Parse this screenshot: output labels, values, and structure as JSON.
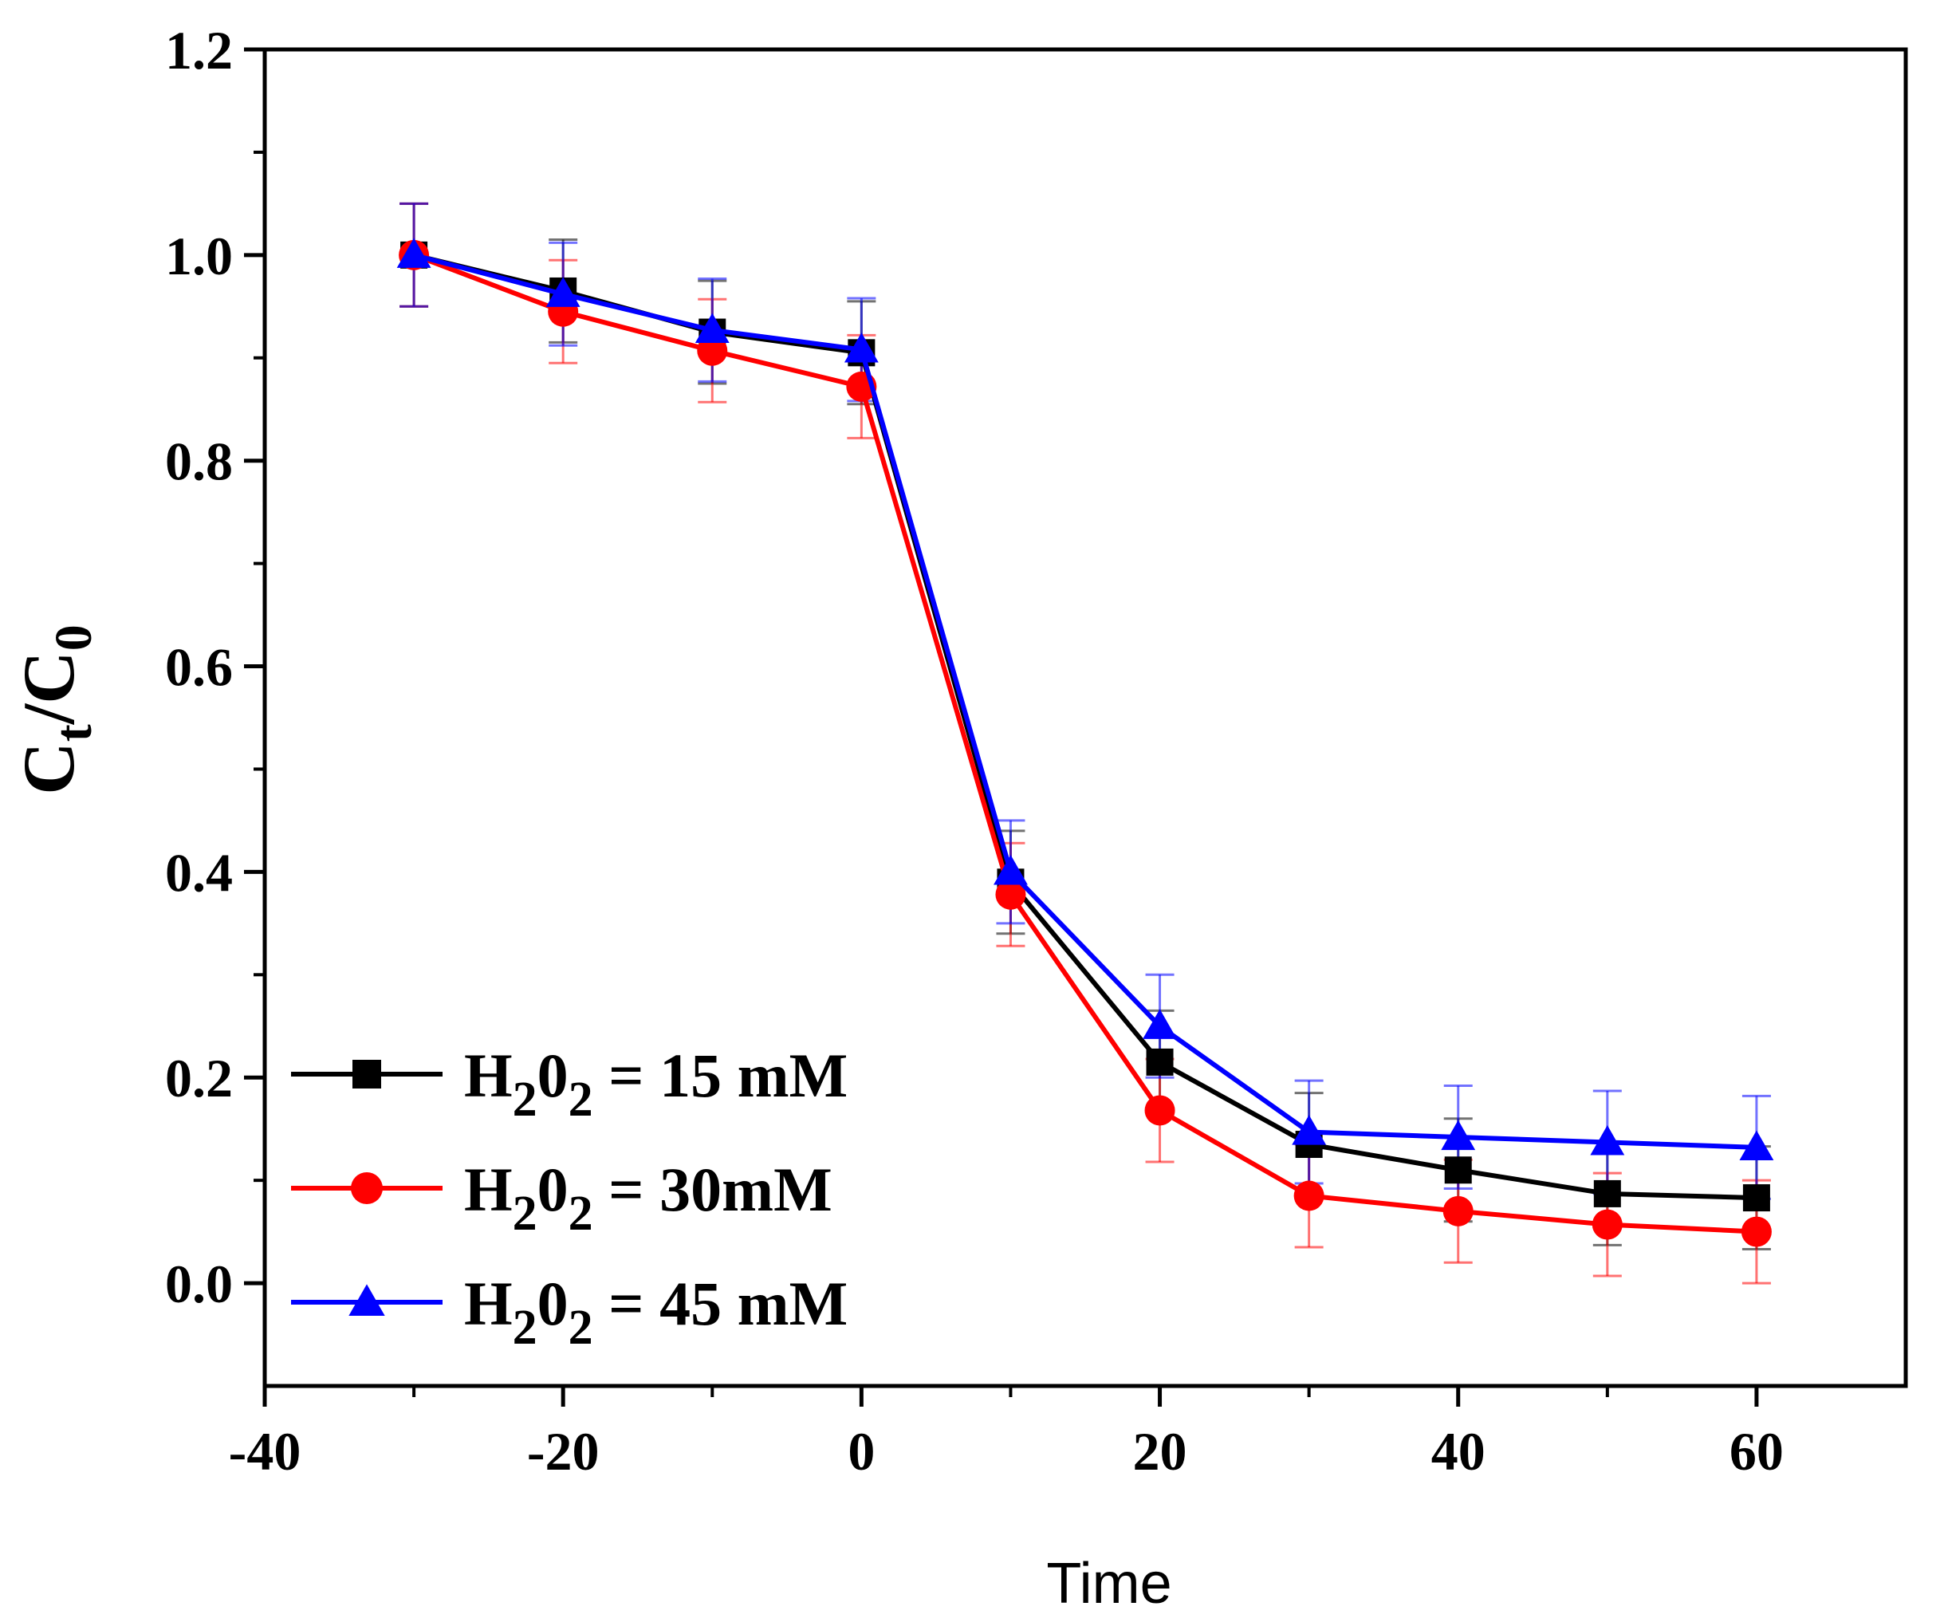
{
  "chart_data": {
    "type": "line",
    "xlabel": "Time",
    "ylabel": {
      "main": "C",
      "sub1": "t",
      "slash": "/C",
      "sub2": "0"
    },
    "xlim": [
      -40,
      70
    ],
    "ylim": [
      -0.1,
      1.2
    ],
    "xticks": [
      -40,
      -20,
      0,
      20,
      40,
      60
    ],
    "xtick_labels": [
      "-40",
      "-20",
      "0",
      "20",
      "40",
      "60"
    ],
    "yticks": [
      0.0,
      0.2,
      0.4,
      0.6,
      0.8,
      1.0,
      1.2
    ],
    "ytick_labels": [
      "0.0",
      "0.2",
      "0.4",
      "0.6",
      "0.8",
      "1.0",
      "1.2"
    ],
    "x": [
      -30,
      -20,
      -10,
      0,
      10,
      20,
      30,
      40,
      50,
      60
    ],
    "legend_position": "bottom-left",
    "series": [
      {
        "name": "H₂0₂ = 15 mM",
        "label_parts": [
          "H",
          "2",
          "0",
          "2",
          " = 15 mM"
        ],
        "color": "#000000",
        "marker": "square",
        "values": [
          1.0,
          0.965,
          0.925,
          0.905,
          0.39,
          0.215,
          0.135,
          0.11,
          0.087,
          0.083
        ],
        "errors": [
          0.05,
          0.05,
          0.05,
          0.05,
          0.05,
          0.05,
          0.05,
          0.05,
          0.05,
          0.05
        ]
      },
      {
        "name": "H₂0₂ = 30mM",
        "label_parts": [
          "H",
          "2",
          "0",
          "2",
          " = 30mM"
        ],
        "color": "#ff0000",
        "marker": "circle",
        "values": [
          1.0,
          0.945,
          0.907,
          0.872,
          0.378,
          0.168,
          0.085,
          0.07,
          0.057,
          0.05
        ],
        "errors": [
          0.05,
          0.05,
          0.05,
          0.05,
          0.05,
          0.05,
          0.05,
          0.05,
          0.05,
          0.05
        ]
      },
      {
        "name": "H₂0₂ = 45 mM",
        "label_parts": [
          "H",
          "2",
          "0",
          "2",
          " = 45 mM"
        ],
        "color": "#0000ff",
        "marker": "triangle",
        "values": [
          1.0,
          0.962,
          0.927,
          0.908,
          0.4,
          0.25,
          0.147,
          0.142,
          0.137,
          0.132
        ],
        "errors": [
          0.05,
          0.05,
          0.05,
          0.05,
          0.05,
          0.05,
          0.05,
          0.05,
          0.05,
          0.05
        ]
      }
    ]
  }
}
